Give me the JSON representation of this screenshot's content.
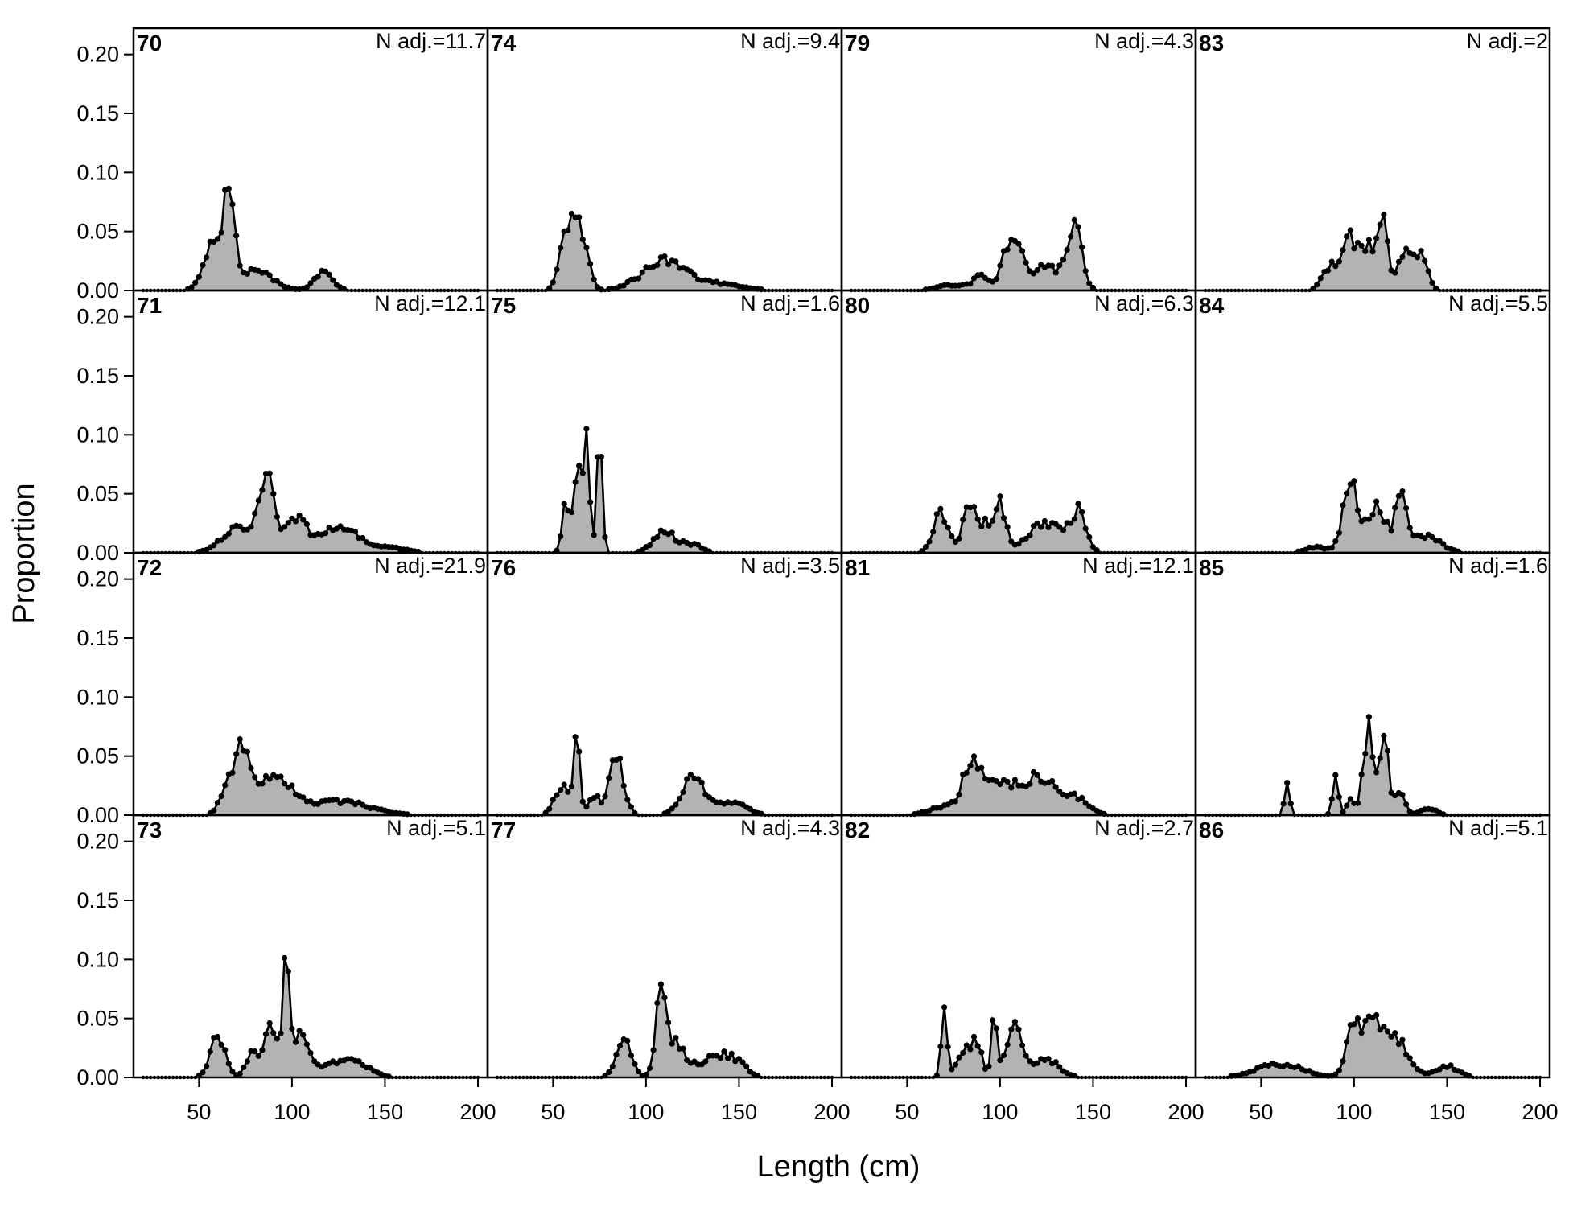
{
  "chart_data": {
    "type": "area",
    "title": "",
    "xlabel": "Length (cm)",
    "ylabel": "Proportion",
    "xlim": [
      20,
      200
    ],
    "ylim": [
      0,
      0.21
    ],
    "x_ticks": [
      50,
      100,
      150,
      200
    ],
    "y_ticks": [
      "0.00",
      "0.05",
      "0.10",
      "0.15",
      "0.20"
    ],
    "n_label_prefix": "N adj.=",
    "grid": false,
    "colors": {
      "fill": "#b3b3b3",
      "line": "#000000",
      "frame": "#000000"
    },
    "layout": {
      "columns": 4,
      "rows": 4,
      "order": "column-major"
    },
    "panels": [
      {
        "id": "70",
        "n_adj": "11.7",
        "peaks": [
          [
            66,
            0.078,
            3
          ],
          [
            57,
            0.037,
            5
          ],
          [
            80,
            0.018,
            9
          ],
          [
            117,
            0.015,
            5
          ]
        ]
      },
      {
        "id": "71",
        "n_adj": "12.1",
        "peaks": [
          [
            86,
            0.065,
            4
          ],
          [
            70,
            0.022,
            8
          ],
          [
            102,
            0.028,
            6
          ],
          [
            125,
            0.022,
            10
          ],
          [
            150,
            0.005,
            10
          ]
        ]
      },
      {
        "id": "72",
        "n_adj": "21.9",
        "peaks": [
          [
            73,
            0.055,
            4
          ],
          [
            90,
            0.036,
            9
          ],
          [
            125,
            0.012,
            16
          ],
          [
            65,
            0.02,
            4
          ]
        ]
      },
      {
        "id": "73",
        "n_adj": "5.1",
        "peaks": [
          [
            60,
            0.035,
            4
          ],
          [
            97,
            0.088,
            1.5
          ],
          [
            88,
            0.04,
            4
          ],
          [
            104,
            0.035,
            6
          ],
          [
            130,
            0.018,
            9
          ],
          [
            78,
            0.02,
            3
          ]
        ]
      },
      {
        "id": "74",
        "n_adj": "9.4",
        "peaks": [
          [
            61,
            0.063,
            3
          ],
          [
            55,
            0.03,
            3
          ],
          [
            67,
            0.035,
            3
          ],
          [
            110,
            0.025,
            12
          ],
          [
            140,
            0.005,
            12
          ]
        ]
      },
      {
        "id": "75",
        "n_adj": "1.6",
        "peaks": [
          [
            63,
            0.082,
            2
          ],
          [
            68,
            0.097,
            1.5
          ],
          [
            75,
            0.097,
            1.5
          ],
          [
            57,
            0.045,
            2
          ],
          [
            110,
            0.018,
            6
          ],
          [
            125,
            0.007,
            5
          ]
        ]
      },
      {
        "id": "76",
        "n_adj": "3.5",
        "peaks": [
          [
            63,
            0.072,
            1.5
          ],
          [
            84,
            0.05,
            4
          ],
          [
            55,
            0.025,
            4
          ],
          [
            125,
            0.032,
            6
          ],
          [
            145,
            0.012,
            8
          ],
          [
            72,
            0.015,
            3
          ]
        ]
      },
      {
        "id": "77",
        "n_adj": "4.3",
        "peaks": [
          [
            108,
            0.078,
            2.5
          ],
          [
            88,
            0.033,
            4
          ],
          [
            115,
            0.03,
            6
          ],
          [
            138,
            0.02,
            8
          ],
          [
            150,
            0.008,
            5
          ]
        ]
      },
      {
        "id": "79",
        "n_adj": "4.3",
        "peaks": [
          [
            107,
            0.05,
            5
          ],
          [
            140,
            0.055,
            4
          ],
          [
            125,
            0.022,
            6
          ],
          [
            75,
            0.005,
            8
          ],
          [
            90,
            0.012,
            4
          ]
        ]
      },
      {
        "id": "80",
        "n_adj": "6.3",
        "peaks": [
          [
            68,
            0.035,
            4
          ],
          [
            84,
            0.04,
            4
          ],
          [
            100,
            0.04,
            3
          ],
          [
            125,
            0.027,
            10
          ],
          [
            142,
            0.03,
            4
          ],
          [
            93,
            0.02,
            3
          ]
        ]
      },
      {
        "id": "81",
        "n_adj": "12.1",
        "peaks": [
          [
            85,
            0.045,
            5
          ],
          [
            102,
            0.03,
            8
          ],
          [
            122,
            0.033,
            7
          ],
          [
            140,
            0.015,
            7
          ],
          [
            70,
            0.007,
            8
          ]
        ]
      },
      {
        "id": "82",
        "n_adj": "2.7",
        "peaks": [
          [
            70,
            0.056,
            1.5
          ],
          [
            97,
            0.056,
            1.5
          ],
          [
            108,
            0.05,
            4
          ],
          [
            82,
            0.025,
            5
          ],
          [
            125,
            0.015,
            7
          ],
          [
            88,
            0.02,
            2
          ]
        ]
      },
      {
        "id": "83",
        "n_adj": "2",
        "peaks": [
          [
            98,
            0.045,
            4
          ],
          [
            115,
            0.062,
            3
          ],
          [
            128,
            0.038,
            4
          ],
          [
            137,
            0.028,
            3
          ],
          [
            87,
            0.02,
            4
          ],
          [
            107,
            0.035,
            3
          ]
        ]
      },
      {
        "id": "84",
        "n_adj": "5.5",
        "peaks": [
          [
            98,
            0.058,
            4
          ],
          [
            112,
            0.04,
            5
          ],
          [
            125,
            0.043,
            3
          ],
          [
            138,
            0.015,
            8
          ],
          [
            80,
            0.005,
            6
          ]
        ]
      },
      {
        "id": "85",
        "n_adj": "1.6",
        "peaks": [
          [
            108,
            0.073,
            3
          ],
          [
            116,
            0.079,
            2
          ],
          [
            64,
            0.028,
            1.5
          ],
          [
            90,
            0.035,
            1.5
          ],
          [
            124,
            0.02,
            3
          ],
          [
            98,
            0.012,
            2
          ],
          [
            140,
            0.006,
            4
          ]
        ]
      },
      {
        "id": "86",
        "n_adj": "5.1",
        "peaks": [
          [
            100,
            0.045,
            4
          ],
          [
            110,
            0.05,
            4
          ],
          [
            122,
            0.035,
            7
          ],
          [
            60,
            0.012,
            12
          ],
          [
            150,
            0.01,
            6
          ]
        ]
      }
    ]
  }
}
